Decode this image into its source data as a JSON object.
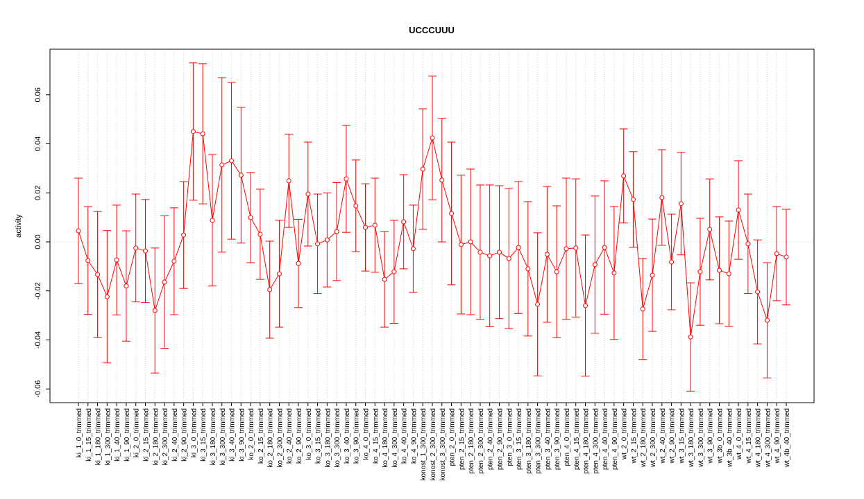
{
  "chart_data": {
    "type": "errorbar",
    "title": "UCCCUUU",
    "y_label": "activity",
    "color": "#ff0000",
    "grid": true,
    "categories": [
      "ki_1_0_trimmed",
      "ki_1_15_trimmed",
      "ki_1_180_trimmed",
      "ki_1_300_trimmed",
      "ki_1_40_trimmed",
      "ki_1_90_trimmed",
      "ki_2_0_trimmed",
      "ki_2_15_trimmed",
      "ki_2_180_trimmed",
      "ki_2_300_trimmed",
      "ki_2_40_trimmed",
      "ki_2_90_trimmed",
      "ki_3_0_trimmed",
      "ki_3_15_trimmed",
      "ki_3_180_trimmed",
      "ki_3_300_trimmed",
      "ki_3_40_trimmed",
      "ki_3_90_trimmed",
      "ko_2_0_trimmed",
      "ko_2_15_trimmed",
      "ko_2_180_trimmed",
      "ko_2_300_trimmed",
      "ko_2_40_trimmed",
      "ko_2_90_trimmed",
      "ko_3_0_trimmed",
      "ko_3_15_trimmed",
      "ko_3_180_trimmed",
      "ko_3_300_trimmed",
      "ko_3_40_trimmed",
      "ko_3_90_trimmed",
      "ko_4_0_trimmed",
      "ko_4_15_trimmed",
      "ko_4_180_trimmed",
      "ko_4_300_trimmed",
      "ko_4_40_trimmed",
      "ko_4_90_trimmed",
      "konost_1_300_trimmed",
      "konost_2_300_trimmed",
      "konost_3_300_trimmed",
      "pten_2_0_trimmed",
      "pten_2_15_trimmed",
      "pten_2_180_trimmed",
      "pten_2_300_trimmed",
      "pten_2_40_trimmed",
      "pten_2_90_trimmed",
      "pten_3_0_trimmed",
      "pten_3_15_trimmed",
      "pten_3_180_trimmed",
      "pten_3_300_trimmed",
      "pten_3_40_trimmed",
      "pten_3_90_trimmed",
      "pten_4_0_trimmed",
      "pten_4_15_trimmed",
      "pten_4_180_trimmed",
      "pten_4_300_trimmed",
      "pten_4_40_trimmed",
      "pten_4_90_trimmed",
      "wt_2_0_trimmed",
      "wt_2_15_trimmed",
      "wt_2_180_trimmed",
      "wt_2_300_trimmed",
      "wt_2_40_trimmed",
      "wt_2_90_trimmed",
      "wt_3_15_trimmed",
      "wt_3_180_trimmed",
      "wt_3_300_trimmed",
      "wt_3_90_trimmed",
      "wt_3b_0_trimmed",
      "wt_3b_40_trimmed",
      "wt_4_0_trimmed",
      "wt_4_15_trimmed",
      "wt_4_180_trimmed",
      "wt_4_300_trimmed",
      "wt_4_90_trimmed",
      "wt_4b_40_trimmed"
    ],
    "values": [
      0.0045,
      -0.0076,
      -0.0133,
      -0.0224,
      -0.0074,
      -0.018,
      -0.0025,
      -0.0037,
      -0.028,
      -0.0164,
      -0.0079,
      0.0028,
      0.045,
      0.0441,
      0.0088,
      0.0314,
      0.0331,
      0.0272,
      0.0099,
      0.0031,
      -0.0195,
      -0.013,
      0.0249,
      -0.0088,
      0.0195,
      -0.0008,
      0.0008,
      0.0042,
      0.0257,
      0.0147,
      0.0059,
      0.0068,
      -0.0153,
      -0.0122,
      0.0082,
      -0.0028,
      0.0297,
      0.0424,
      0.0252,
      0.0116,
      -0.0011,
      0.0,
      -0.0042,
      -0.0057,
      -0.0042,
      -0.0068,
      -0.0023,
      -0.011,
      -0.0255,
      -0.0051,
      -0.0122,
      -0.0028,
      -0.0025,
      -0.026,
      -0.0093,
      -0.0023,
      -0.0127,
      0.0269,
      0.0173,
      -0.0274,
      -0.0136,
      0.0181,
      -0.0082,
      0.0156,
      -0.0388,
      -0.0122,
      0.0051,
      -0.0116,
      -0.013,
      0.013,
      -0.0008,
      -0.0204,
      -0.032,
      -0.0048,
      -0.0062
    ],
    "errors": [
      0.0215,
      0.022,
      0.0257,
      0.027,
      0.0224,
      0.0225,
      0.022,
      0.021,
      0.0255,
      0.027,
      0.0218,
      0.0218,
      0.028,
      0.0286,
      0.0268,
      0.0356,
      0.032,
      0.0277,
      0.0184,
      0.0184,
      0.0198,
      0.0218,
      0.019,
      0.018,
      0.0212,
      0.0203,
      0.0192,
      0.02,
      0.0218,
      0.0187,
      0.0178,
      0.0192,
      0.0195,
      0.021,
      0.0192,
      0.0178,
      0.0246,
      0.0252,
      0.0252,
      0.0291,
      0.0283,
      0.0297,
      0.0274,
      0.0289,
      0.0271,
      0.0286,
      0.0269,
      0.0274,
      0.0292,
      0.0277,
      0.0269,
      0.0288,
      0.0282,
      0.0288,
      0.028,
      0.0272,
      0.0271,
      0.0192,
      0.0195,
      0.0206,
      0.0229,
      0.0195,
      0.0195,
      0.0209,
      0.0221,
      0.0218,
      0.0206,
      0.0218,
      0.0215,
      0.0201,
      0.0203,
      0.0212,
      0.0235,
      0.0192,
      0.0195
    ],
    "ylim": [
      -0.0656,
      0.0786
    ],
    "yticks": [
      -0.06,
      -0.04,
      -0.02,
      {
        "value": 0,
        "label": "0.00"
      },
      0.02,
      0.04,
      0.06
    ]
  }
}
